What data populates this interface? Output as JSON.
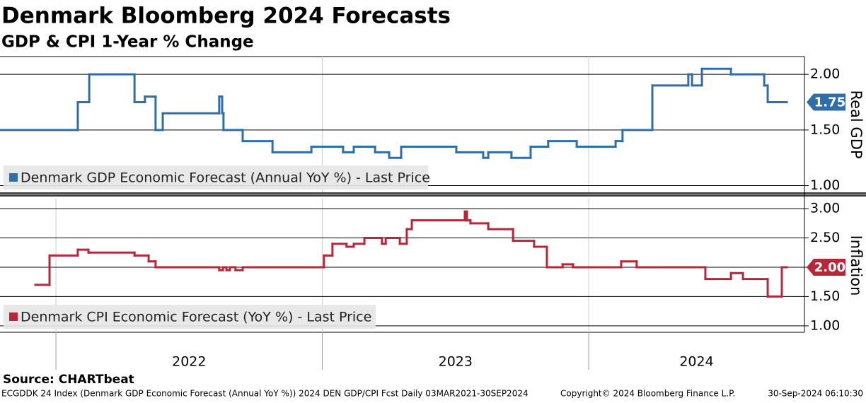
{
  "title": "Denmark Bloomberg 2024 Forecasts",
  "subtitle": "GDP & CPI 1-Year % Change",
  "source": "Source: CHARTbeat",
  "footer": {
    "left": "ECGDDK 24 Index (Denmark GDP Economic Forecast (Annual YoY %)) 2024 DEN GDP/CPI Fcst  Daily 03MAR2021-30SEP2024",
    "center": "Copyright© 2024 Bloomberg Finance L.P.",
    "right": "30-Sep-2024 06:10:30"
  },
  "chart_data": [
    {
      "type": "line",
      "step": "after",
      "ylabel": "Real GDP",
      "xlim": [
        2021.79,
        2024.81
      ],
      "xticks": [
        2023,
        2024
      ],
      "ylim": [
        0.94,
        2.16
      ],
      "yticks": [
        {
          "value": 1,
          "label": "1.00"
        },
        {
          "value": 1.5,
          "label": "1.50"
        },
        {
          "value": 2,
          "label": "2.00"
        }
      ],
      "grid": true,
      "series": [
        {
          "name": "Denmark GDP Economic Forecast (Annual YoY %) - Last Price",
          "color": "#2f6ea8",
          "last_price_label": "1.75",
          "x": [
            2021.79,
            2022.082,
            2022.125,
            2022.295,
            2022.334,
            2022.374,
            2022.401,
            2022.613,
            2022.624,
            2022.629,
            2022.701,
            2022.813,
            2022.959,
            2023.078,
            2023.118,
            2023.198,
            2023.251,
            2023.296,
            2023.503,
            2023.604,
            2023.623,
            2023.71,
            2023.782,
            2023.848,
            2023.955,
            2024.101,
            2024.127,
            2024.239,
            2024.374,
            2024.388,
            2024.425,
            2024.534,
            2024.659,
            2024.672,
            2024.743
          ],
          "values": [
            1.5,
            1.75,
            2.0,
            1.75,
            1.8,
            1.5,
            1.65,
            1.8,
            1.65,
            1.5,
            1.4,
            1.3,
            1.35,
            1.3,
            1.35,
            1.3,
            1.25,
            1.35,
            1.3,
            1.25,
            1.3,
            1.25,
            1.35,
            1.4,
            1.35,
            1.4,
            1.5,
            1.9,
            2.0,
            1.9,
            2.05,
            2.0,
            1.9,
            1.75,
            1.75
          ]
        }
      ]
    },
    {
      "type": "line",
      "step": "after",
      "ylabel": "Inflation",
      "xlim": [
        2021.79,
        2024.81
      ],
      "xticks": [
        {
          "value": 2022,
          "label": "2022"
        },
        {
          "value": 2023,
          "label": "2023"
        },
        {
          "value": 2024,
          "label": "2024"
        }
      ],
      "ylim": [
        0.89,
        3.17
      ],
      "yticks": [
        {
          "value": 1,
          "label": "1.00"
        },
        {
          "value": 1.5,
          "label": "1.50"
        },
        {
          "value": 2,
          "label": "2.00"
        },
        {
          "value": 2.5,
          "label": "2.50"
        },
        {
          "value": 3,
          "label": "3.00"
        }
      ],
      "grid": true,
      "series": [
        {
          "name": "Denmark CPI Economic Forecast (YoY %) - Last Price",
          "color": "#b5283a",
          "last_price_label": "2.00",
          "x": [
            2021.923,
            2021.976,
            2022.082,
            2022.122,
            2022.295,
            2022.348,
            2022.374,
            2022.613,
            2022.627,
            2022.64,
            2022.653,
            2022.674,
            2022.701,
            2023.006,
            2023.038,
            2023.091,
            2023.118,
            2023.158,
            2023.224,
            2023.238,
            2023.291,
            2023.317,
            2023.336,
            2023.535,
            2023.543,
            2023.556,
            2023.623,
            2023.716,
            2023.795,
            2023.843,
            2023.902,
            2023.941,
            2024.122,
            2024.18,
            2024.438,
            2024.534,
            2024.579,
            2024.672,
            2024.725,
            2024.743
          ],
          "values": [
            1.7,
            2.2,
            2.3,
            2.25,
            2.2,
            2.1,
            2.0,
            1.95,
            2.0,
            1.95,
            2.0,
            1.95,
            2.0,
            2.2,
            2.4,
            2.35,
            2.4,
            2.5,
            2.4,
            2.5,
            2.4,
            2.65,
            2.8,
            2.95,
            2.8,
            2.75,
            2.65,
            2.45,
            2.35,
            2.0,
            2.05,
            2.0,
            2.1,
            2.0,
            1.8,
            1.9,
            1.8,
            1.5,
            2.0,
            2.0
          ]
        }
      ]
    }
  ]
}
